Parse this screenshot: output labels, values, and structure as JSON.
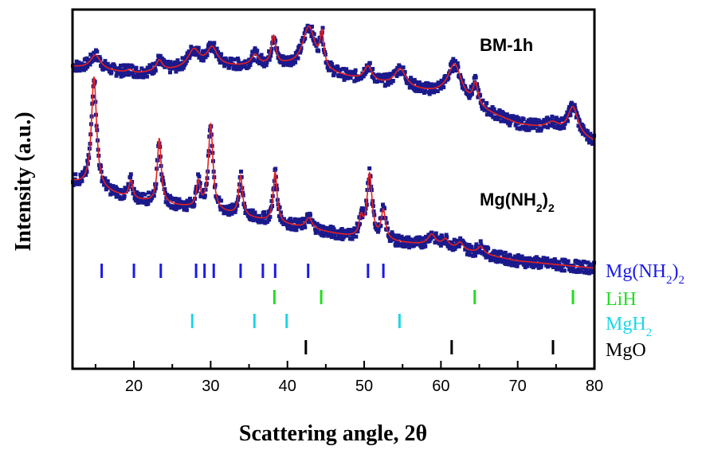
{
  "chart_data": {
    "type": "scatter",
    "xlabel": "Scattering angle, 2θ",
    "ylabel": "Intensity (a.u.)",
    "xlim": [
      12,
      80
    ],
    "ylim": [
      0,
      100
    ],
    "x_ticks": [
      20,
      30,
      40,
      50,
      60,
      70,
      80
    ],
    "y_ticks_shown": false,
    "grid": false,
    "series": [
      {
        "name": "BM-1h",
        "label_parts": {
          "main": "BM-1h"
        },
        "peaks": [
          {
            "x": 15.0,
            "h": 4,
            "w": 0.8
          },
          {
            "x": 19.5,
            "h": 1,
            "w": 0.5
          },
          {
            "x": 23.3,
            "h": 3,
            "w": 0.5
          },
          {
            "x": 27.8,
            "h": 5,
            "w": 0.9
          },
          {
            "x": 30.2,
            "h": 5,
            "w": 0.8
          },
          {
            "x": 35.8,
            "h": 3,
            "w": 0.6
          },
          {
            "x": 38.2,
            "h": 8,
            "w": 0.35
          },
          {
            "x": 42.8,
            "h": 12,
            "w": 1.0
          },
          {
            "x": 44.5,
            "h": 9,
            "w": 0.3
          },
          {
            "x": 50.5,
            "h": 4,
            "w": 0.6
          },
          {
            "x": 54.7,
            "h": 5,
            "w": 0.9
          },
          {
            "x": 61.8,
            "h": 10,
            "w": 1.1
          },
          {
            "x": 64.5,
            "h": 6,
            "w": 0.4
          },
          {
            "x": 74.5,
            "h": 2,
            "w": 1.0
          },
          {
            "x": 77.2,
            "h": 8,
            "w": 0.8
          }
        ],
        "baseline": [
          [
            12,
            84
          ],
          [
            20,
            82
          ],
          [
            30,
            84
          ],
          [
            40,
            84
          ],
          [
            50,
            80
          ],
          [
            60,
            76
          ],
          [
            70,
            68
          ],
          [
            75,
            66
          ],
          [
            80,
            63
          ]
        ]
      },
      {
        "name": "Mg(NH2)2",
        "label_parts": {
          "main": "Mg(NH",
          "sub1": "2",
          "mid": ")",
          "sub2": "2"
        },
        "peaks": [
          {
            "x": 14.8,
            "h": 31,
            "w": 0.4
          },
          {
            "x": 19.6,
            "h": 5,
            "w": 0.3
          },
          {
            "x": 23.3,
            "h": 18,
            "w": 0.3
          },
          {
            "x": 28.4,
            "h": 7,
            "w": 0.3
          },
          {
            "x": 30.0,
            "h": 24,
            "w": 0.35
          },
          {
            "x": 33.9,
            "h": 11,
            "w": 0.3
          },
          {
            "x": 38.4,
            "h": 14,
            "w": 0.3
          },
          {
            "x": 42.8,
            "h": 3,
            "w": 0.5
          },
          {
            "x": 49.6,
            "h": 5,
            "w": 0.3
          },
          {
            "x": 50.7,
            "h": 18,
            "w": 0.4
          },
          {
            "x": 52.5,
            "h": 8,
            "w": 0.35
          },
          {
            "x": 58.8,
            "h": 3,
            "w": 0.6
          },
          {
            "x": 60.6,
            "h": 2,
            "w": 0.5
          },
          {
            "x": 62.5,
            "h": 2,
            "w": 0.5
          },
          {
            "x": 65.2,
            "h": 2,
            "w": 0.5
          }
        ],
        "baseline": [
          [
            12,
            52
          ],
          [
            20,
            47
          ],
          [
            30,
            44
          ],
          [
            40,
            40
          ],
          [
            50,
            36
          ],
          [
            60,
            34
          ],
          [
            70,
            30
          ],
          [
            80,
            28
          ]
        ]
      }
    ],
    "reference_markers": [
      {
        "phase": "Mg(NH2)2",
        "label_parts": {
          "main": "Mg(NH",
          "sub1": "2",
          "mid": ")",
          "sub2": "2"
        },
        "color": "#1a1ae6",
        "positions": [
          15.8,
          20.0,
          23.5,
          28.1,
          29.2,
          30.4,
          33.9,
          36.8,
          38.4,
          42.7,
          50.5,
          52.5
        ]
      },
      {
        "phase": "LiH",
        "label_parts": {
          "main": "LiH"
        },
        "color": "#22dd22",
        "positions": [
          38.3,
          44.4,
          64.4,
          77.2
        ]
      },
      {
        "phase": "MgH2",
        "label_parts": {
          "main": "MgH",
          "sub1": "2"
        },
        "color": "#1cd6e6",
        "positions": [
          27.6,
          35.7,
          39.9,
          54.6
        ]
      },
      {
        "phase": "MgO",
        "label_parts": {
          "main": "MgO"
        },
        "color": "#000000",
        "positions": [
          42.4,
          61.4,
          74.6
        ]
      }
    ],
    "colors": {
      "data_points": "#1a1a8c",
      "fit_line": "#e62020",
      "axis": "#000000"
    }
  }
}
